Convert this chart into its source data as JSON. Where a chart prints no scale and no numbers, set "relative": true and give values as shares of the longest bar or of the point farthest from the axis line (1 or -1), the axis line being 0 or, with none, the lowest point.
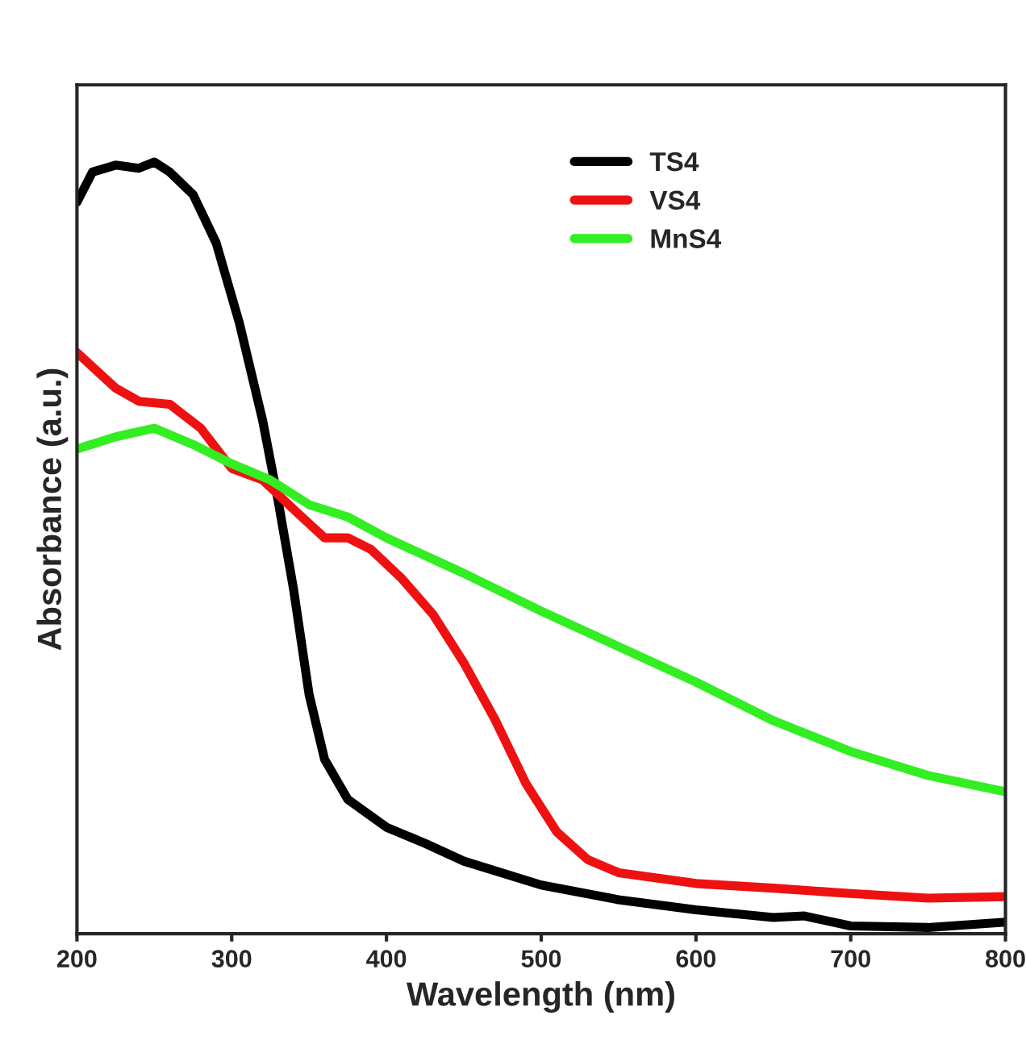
{
  "chart_data": {
    "type": "line",
    "xlabel": "Wavelength (nm)",
    "ylabel": "Absorbance (a.u.)",
    "relative": true,
    "xlim": [
      200,
      800
    ],
    "xticks": [
      200,
      300,
      400,
      500,
      600,
      700,
      800
    ],
    "tick_labels": "x",
    "legend": "top right",
    "grid": false,
    "series": [
      {
        "name": "TS4",
        "color": "#000000",
        "x": [
          200,
          210,
          225,
          240,
          250,
          260,
          275,
          290,
          305,
          320,
          330,
          340,
          350,
          360,
          375,
          400,
          425,
          450,
          500,
          550,
          600,
          650,
          670,
          700,
          750,
          800
        ],
        "values": [
          0.948,
          0.987,
          0.996,
          0.992,
          1.0,
          0.987,
          0.958,
          0.895,
          0.791,
          0.665,
          0.561,
          0.446,
          0.31,
          0.226,
          0.174,
          0.138,
          0.117,
          0.094,
          0.063,
          0.044,
          0.031,
          0.021,
          0.023,
          0.01,
          0.008,
          0.015
        ]
      },
      {
        "name": "VS4",
        "color": "#ee1111",
        "x": [
          200,
          225,
          240,
          260,
          280,
          300,
          320,
          340,
          360,
          375,
          390,
          410,
          430,
          450,
          470,
          490,
          510,
          530,
          550,
          600,
          650,
          700,
          750,
          800
        ],
        "values": [
          0.753,
          0.707,
          0.69,
          0.686,
          0.655,
          0.603,
          0.588,
          0.55,
          0.513,
          0.513,
          0.498,
          0.46,
          0.414,
          0.351,
          0.278,
          0.195,
          0.132,
          0.096,
          0.079,
          0.065,
          0.059,
          0.052,
          0.046,
          0.048
        ]
      },
      {
        "name": "MnS4",
        "color": "#33ee22",
        "x": [
          200,
          225,
          250,
          275,
          300,
          325,
          350,
          375,
          400,
          450,
          500,
          550,
          600,
          650,
          700,
          750,
          800
        ],
        "values": [
          0.628,
          0.644,
          0.655,
          0.634,
          0.609,
          0.588,
          0.556,
          0.54,
          0.513,
          0.467,
          0.418,
          0.372,
          0.326,
          0.276,
          0.236,
          0.205,
          0.184
        ]
      }
    ]
  }
}
